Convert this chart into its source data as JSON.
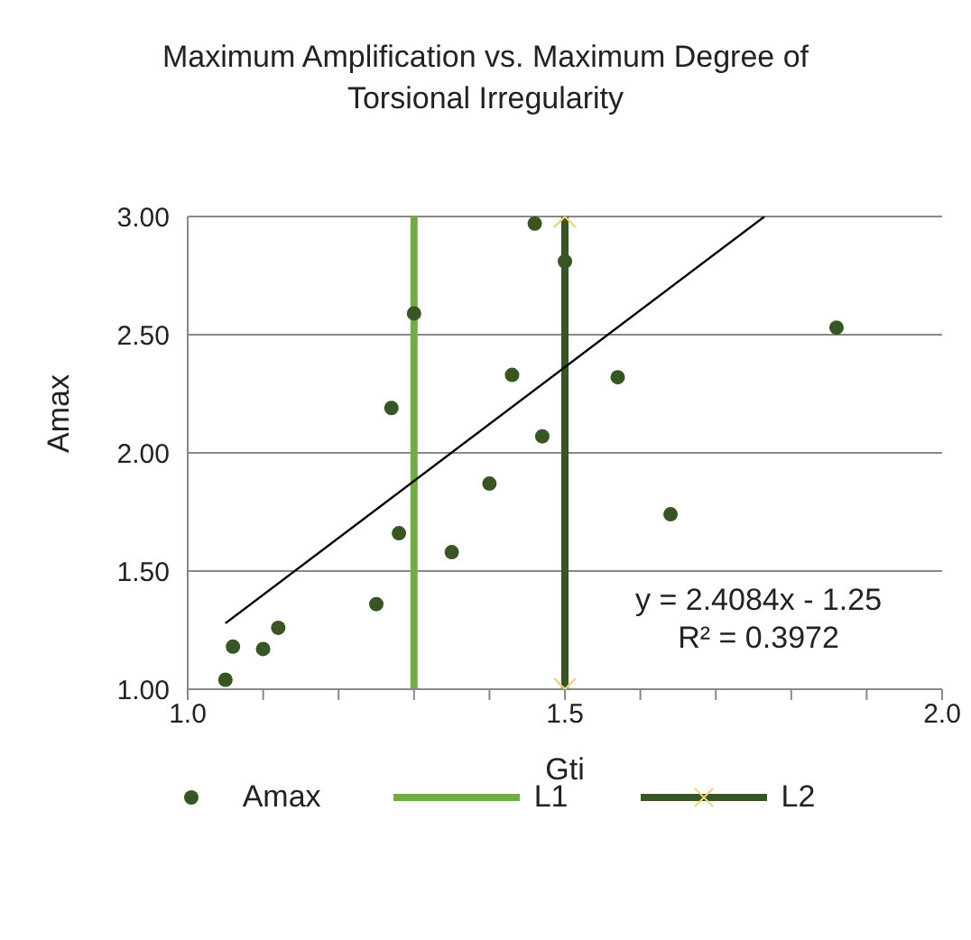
{
  "chart_data": {
    "type": "scatter",
    "title": "Maximum Amplification vs. Maximum Degree of Torsional Irregularity",
    "xlabel": "Gti",
    "ylabel": "Amax",
    "annotations": [
      "y = 2.4084x - 1.25",
      "R² = 0.3972"
    ],
    "series": [
      {
        "name": "Amax",
        "color": "#375623",
        "marker": "circle",
        "x": [
          1.05,
          1.06,
          1.1,
          1.12,
          1.25,
          1.27,
          1.28,
          1.3,
          1.35,
          1.4,
          1.43,
          1.46,
          1.47,
          1.5,
          1.57,
          1.64,
          1.86
        ],
        "values": [
          1.04,
          1.18,
          1.17,
          1.26,
          1.36,
          2.19,
          1.66,
          2.59,
          1.58,
          1.87,
          2.33,
          2.97,
          2.07,
          2.81,
          2.32,
          1.74,
          2.53
        ]
      },
      {
        "name": "L1",
        "type": "line",
        "color": "#70ad47",
        "marker": "none",
        "x": [
          1.3,
          1.3
        ],
        "values": [
          1,
          3
        ]
      },
      {
        "name": "L2",
        "type": "line",
        "color": "#375623",
        "marker": "cross",
        "x": [
          1.5,
          1.5
        ],
        "values": [
          1,
          3
        ]
      },
      {
        "type": "line",
        "color": "#000000",
        "marker": "none",
        "x": [
          1.05,
          1.7646
        ],
        "values": [
          1.279,
          3.0
        ]
      }
    ],
    "xlim": [
      1,
      2
    ],
    "xticks": [
      {
        "value": 1,
        "label": "1.0"
      },
      {
        "value": 1.1,
        "label": null
      },
      {
        "value": 1.2,
        "label": null
      },
      {
        "value": 1.3,
        "label": null
      },
      {
        "value": 1.4,
        "label": null
      },
      {
        "value": 1.5,
        "label": "1.5"
      },
      {
        "value": 1.6,
        "label": null
      },
      {
        "value": 1.7,
        "label": null
      },
      {
        "value": 1.8,
        "label": null
      },
      {
        "value": 1.9,
        "label": null
      },
      {
        "value": 2,
        "label": "2.0"
      }
    ],
    "ylim": [
      1,
      3
    ],
    "yticks": [
      {
        "value": 1,
        "label": "1.00"
      },
      {
        "value": 1.5,
        "label": "1.50"
      },
      {
        "value": 2,
        "label": "2.00"
      },
      {
        "value": 2.5,
        "label": "2.50"
      },
      {
        "value": 3,
        "label": "3.00"
      }
    ],
    "grid": "y",
    "legend": "bottom"
  }
}
